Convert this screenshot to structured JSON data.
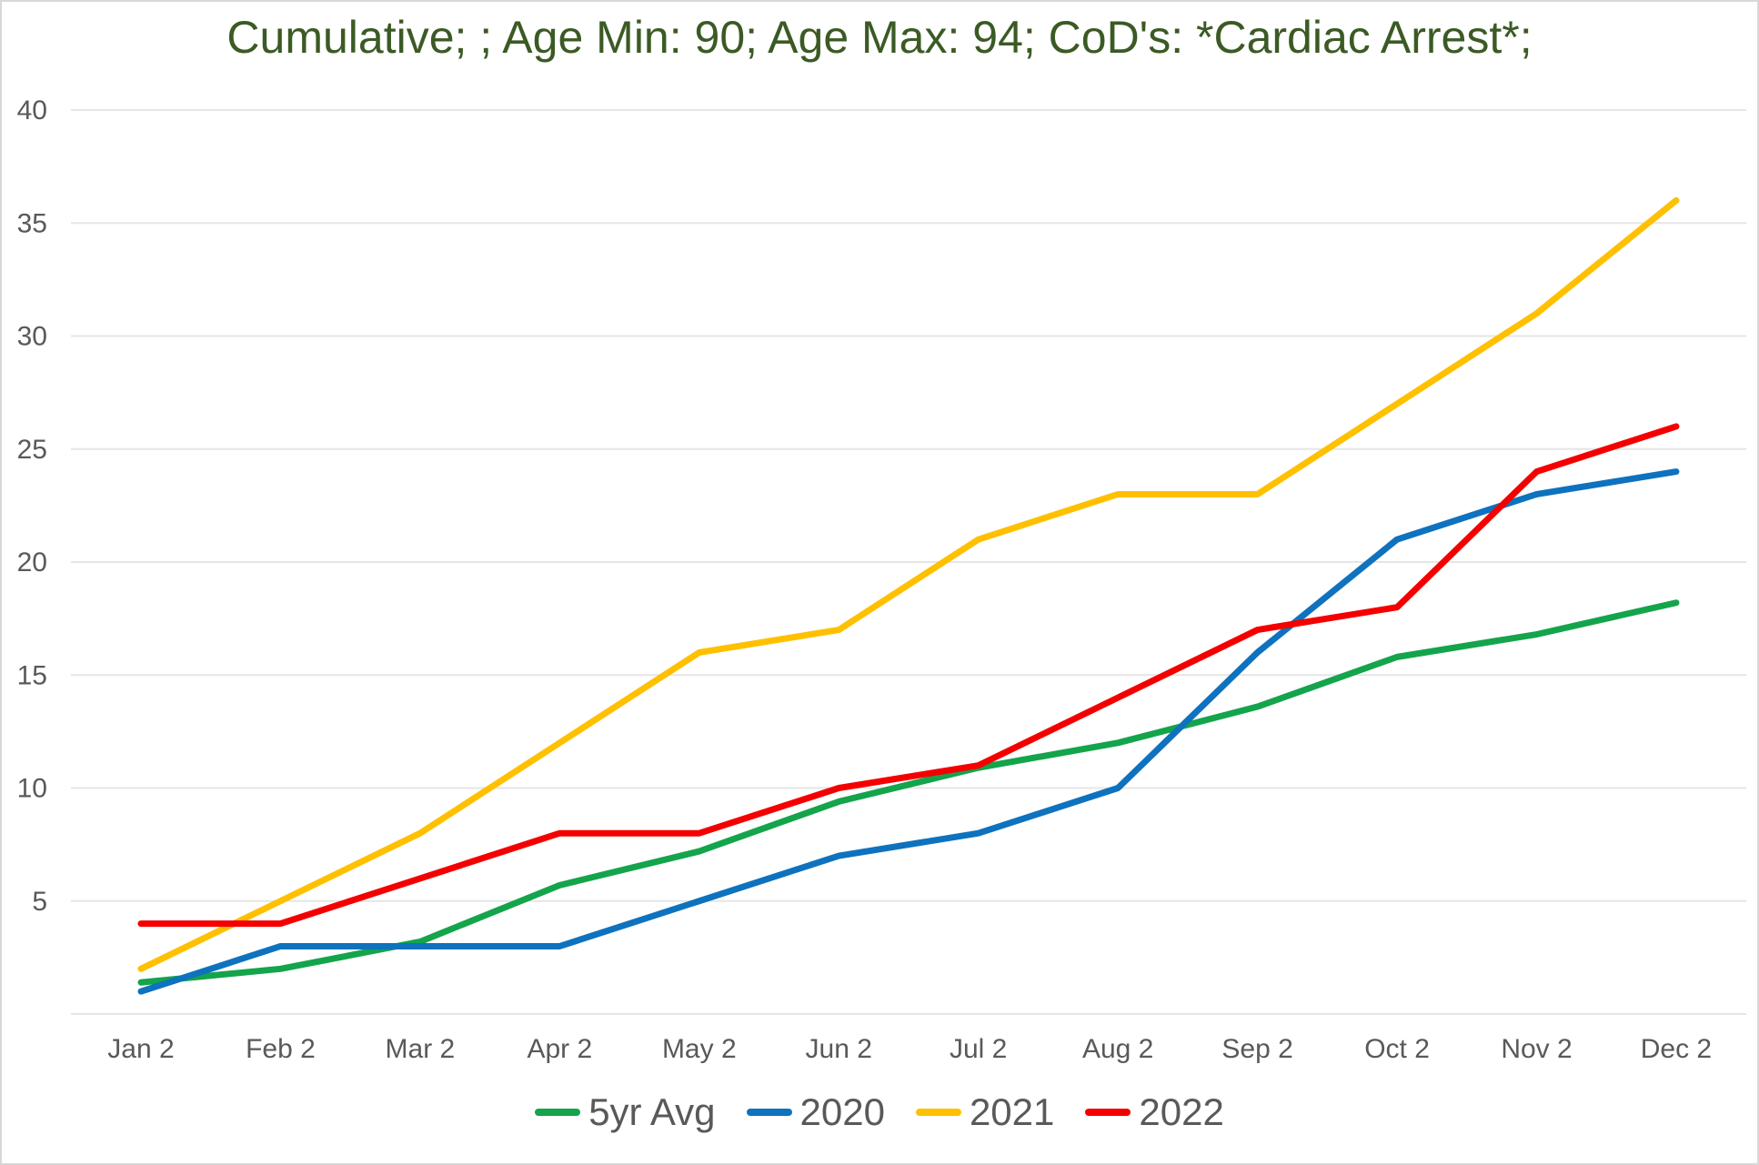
{
  "colors": {
    "title": "#3b5a24",
    "axis_text": "#595959",
    "gridline": "#e6e6e6",
    "frame_border": "#d8d8d8",
    "background": "#ffffff"
  },
  "chart_data": {
    "type": "line",
    "title": "Cumulative; ; Age Min: 90; Age Max: 94; CoD's: *Cardiac Arrest*;",
    "categories": [
      "Jan 2",
      "Feb 2",
      "Mar 2",
      "Apr 2",
      "May 2",
      "Jun 2",
      "Jul 2",
      "Aug 2",
      "Sep 2",
      "Oct 2",
      "Nov 2",
      "Dec 2"
    ],
    "series": [
      {
        "name": "5yr Avg",
        "color": "#14a44c",
        "values": [
          1.4,
          2,
          3.2,
          5.7,
          7.2,
          9.4,
          10.9,
          12,
          13.6,
          15.8,
          16.8,
          18.2
        ]
      },
      {
        "name": "2020",
        "color": "#0e72be",
        "values": [
          1,
          3,
          3,
          3,
          5,
          7,
          8,
          10,
          16,
          21,
          23,
          24
        ]
      },
      {
        "name": "2021",
        "color": "#ffc000",
        "values": [
          2,
          5,
          8,
          12,
          16,
          17,
          21,
          23,
          23,
          27,
          31,
          36
        ]
      },
      {
        "name": "2022",
        "color": "#f40000",
        "values": [
          4,
          4,
          6,
          8,
          8,
          10,
          11,
          14,
          17,
          18,
          24,
          26
        ]
      }
    ],
    "ylim": [
      0,
      40
    ],
    "y_tick_step": 5,
    "y_tick_labels": [
      40,
      35,
      30,
      25,
      20,
      15,
      10,
      5
    ],
    "grid": true,
    "legend_position": "bottom"
  }
}
